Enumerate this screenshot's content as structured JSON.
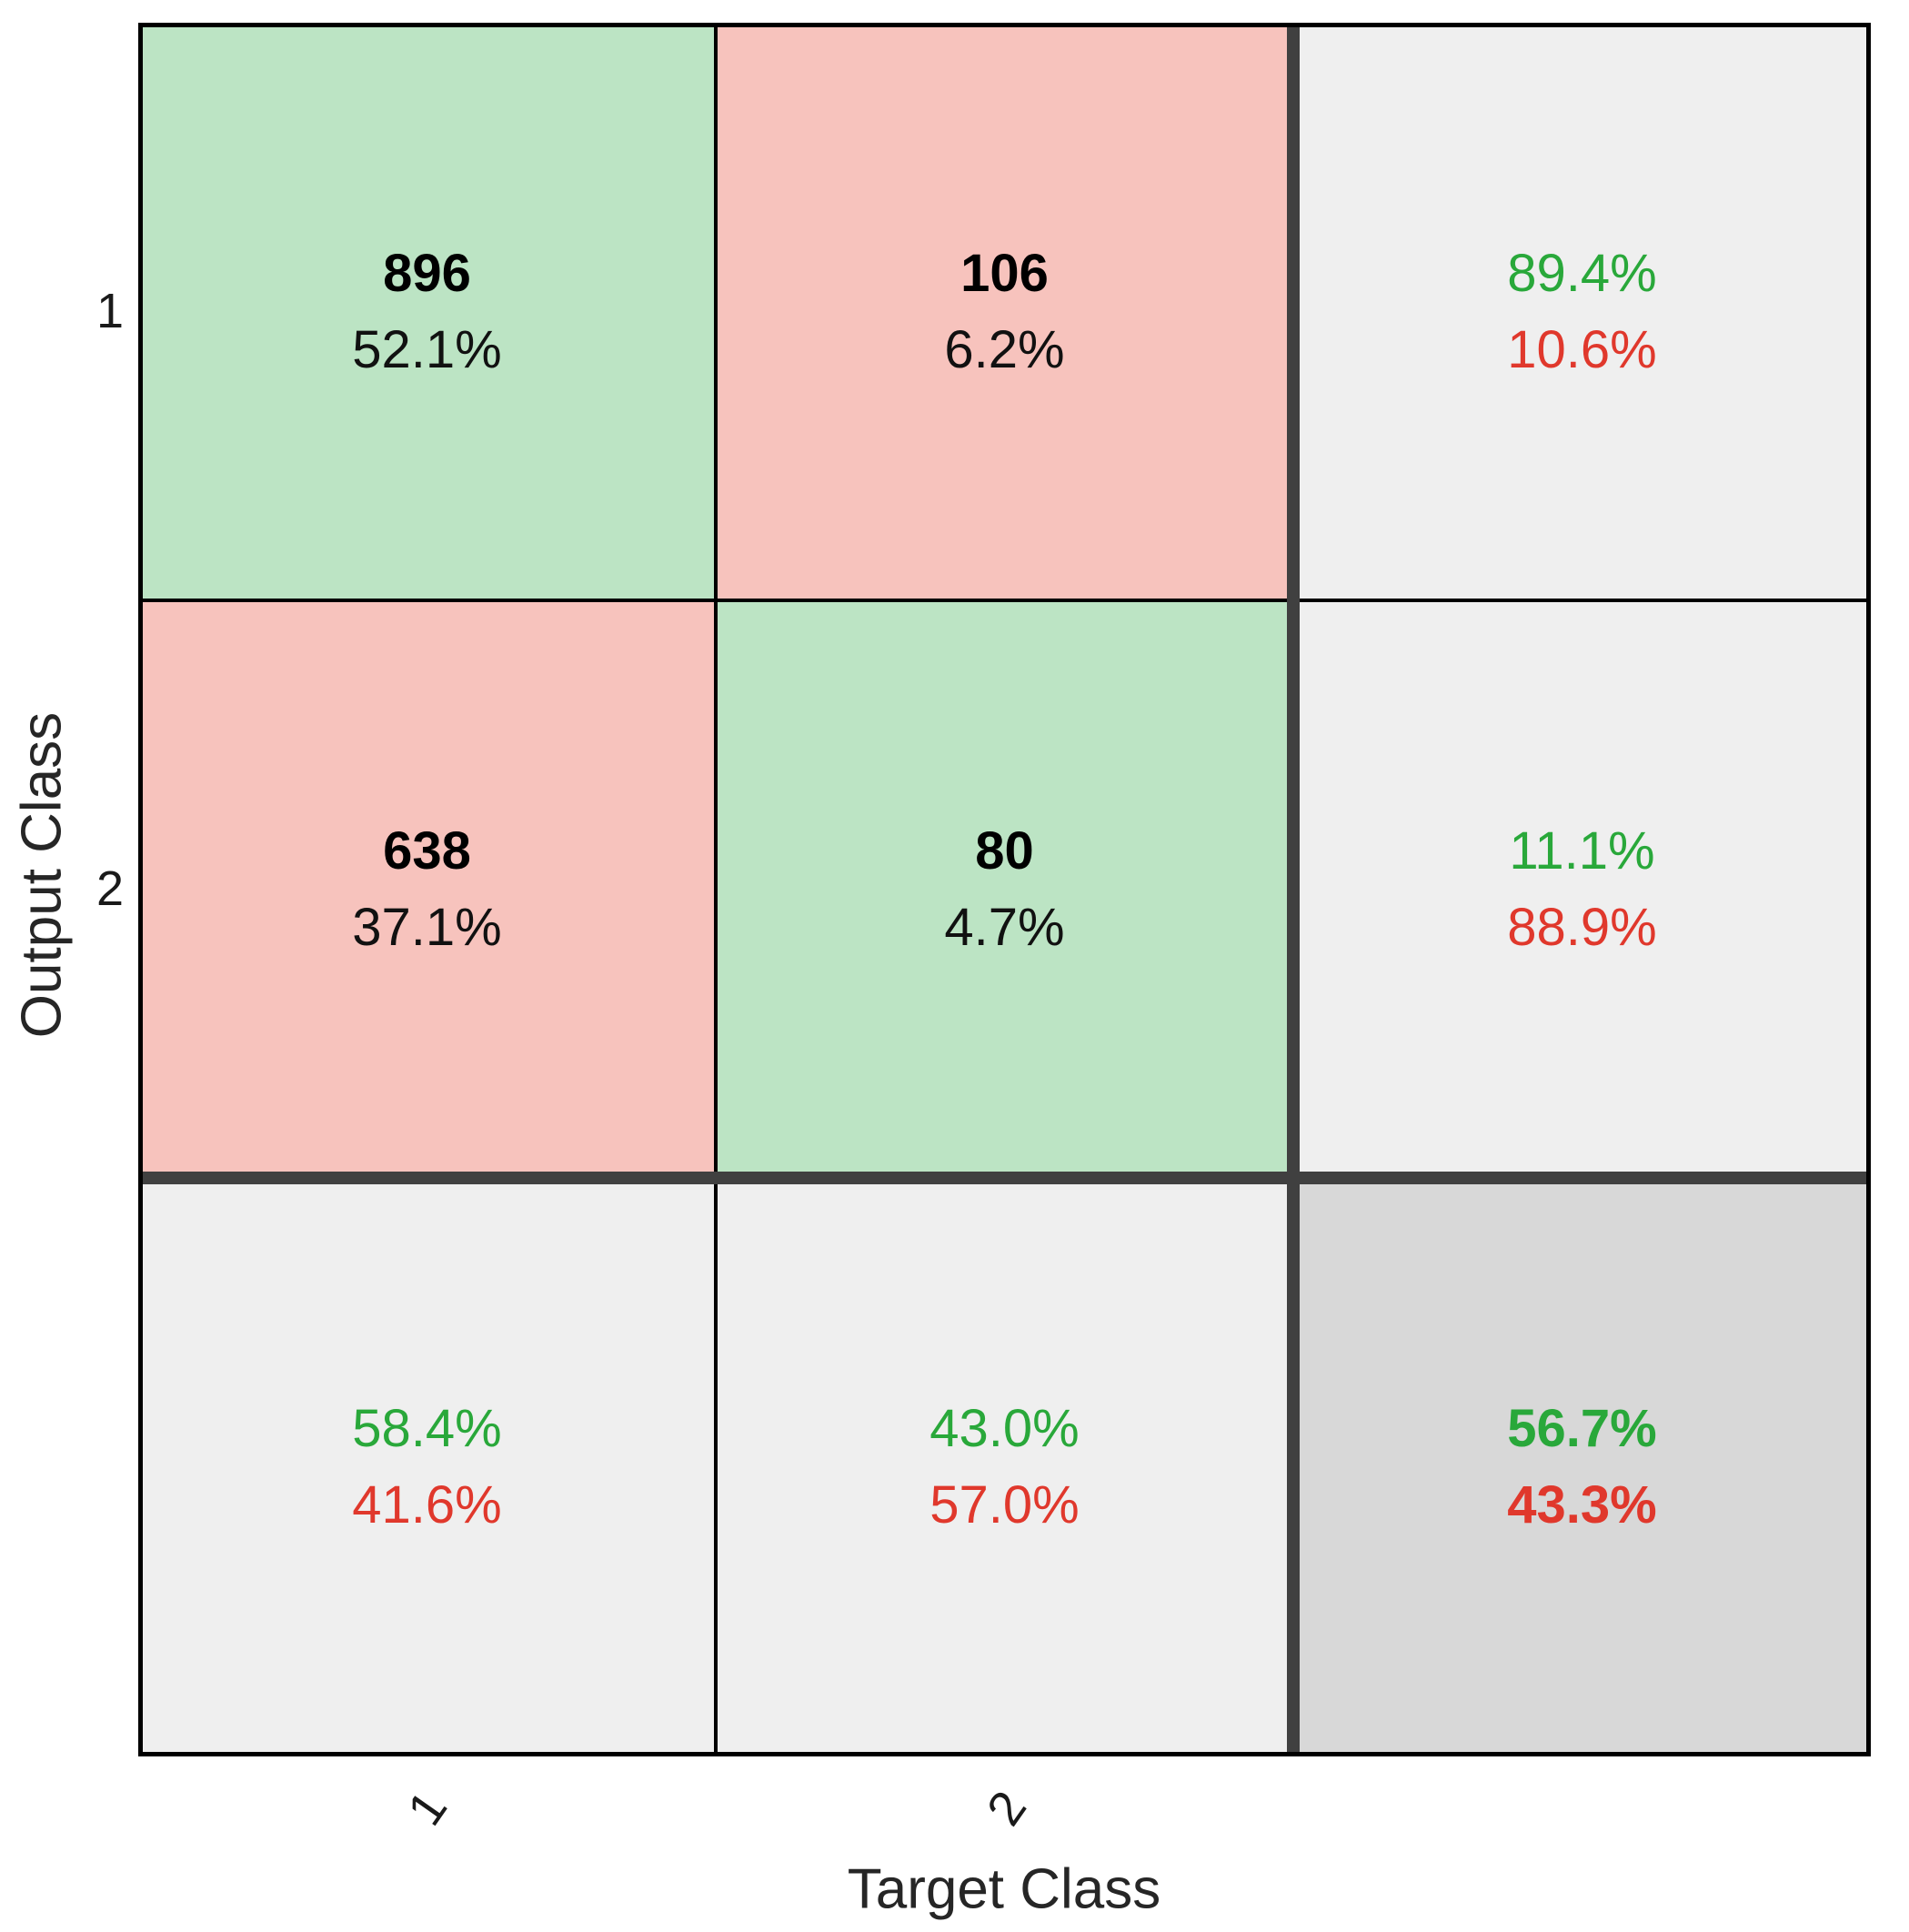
{
  "axes": {
    "x_label": "Target Class",
    "y_label": "Output Class",
    "x_tick_labels": [
      "1",
      "2"
    ],
    "y_tick_labels": [
      "1",
      "2"
    ]
  },
  "colors": {
    "correct_cell_fill": "#bce4c4",
    "incorrect_cell_fill": "#f7c3bd",
    "summary_cell_fill": "#efefef",
    "overall_cell_fill": "#d8d8d8",
    "success_text": "#29a83a",
    "failure_text": "#e0382c",
    "grid_line": "#000000",
    "summary_separator": "#404040"
  },
  "cells": {
    "r1c1": {
      "count": "896",
      "pct": "52.1%"
    },
    "r1c2": {
      "count": "106",
      "pct": "6.2%"
    },
    "r1c3": {
      "green": "89.4%",
      "red": "10.6%"
    },
    "r2c1": {
      "count": "638",
      "pct": "37.1%"
    },
    "r2c2": {
      "count": "80",
      "pct": "4.7%"
    },
    "r2c3": {
      "green": "11.1%",
      "red": "88.9%"
    },
    "r3c1": {
      "green": "58.4%",
      "red": "41.6%"
    },
    "r3c2": {
      "green": "43.0%",
      "red": "57.0%"
    },
    "r3c3": {
      "green": "56.7%",
      "red": "43.3%"
    }
  },
  "chart_data": {
    "type": "heatmap",
    "subtype": "confusion-matrix",
    "title": "",
    "xlabel": "Target Class",
    "ylabel": "Output Class",
    "classes": [
      "1",
      "2"
    ],
    "counts": [
      [
        896,
        106
      ],
      [
        638,
        80
      ]
    ],
    "counts_percent_of_total": [
      [
        52.1,
        6.2
      ],
      [
        37.1,
        4.7
      ]
    ],
    "row_summary_percent": [
      {
        "output_class": "1",
        "correct": 89.4,
        "incorrect": 10.6
      },
      {
        "output_class": "2",
        "correct": 11.1,
        "incorrect": 88.9
      }
    ],
    "column_summary_percent": [
      {
        "target_class": "1",
        "correct": 58.4,
        "incorrect": 41.6
      },
      {
        "target_class": "2",
        "correct": 43.0,
        "incorrect": 57.0
      }
    ],
    "overall_percent": {
      "correct": 56.7,
      "incorrect": 43.3
    },
    "legend_position": "none",
    "grid": "on"
  }
}
